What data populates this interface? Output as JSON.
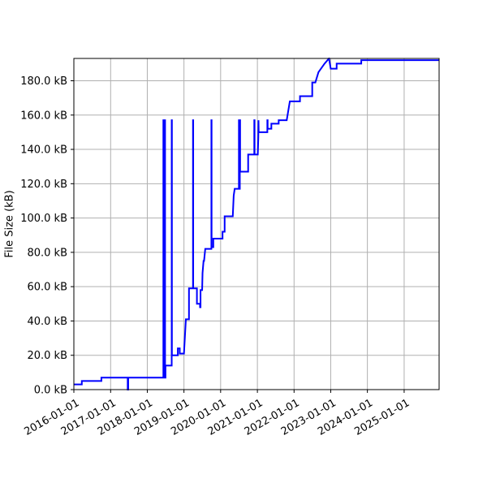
{
  "chart_data": {
    "type": "line",
    "title": "",
    "xlabel": "",
    "ylabel": "File Size (kB)",
    "grid": true,
    "x_is_date": true,
    "xlim": [
      "2016-01-01",
      "2025-12-15"
    ],
    "ylim": [
      0,
      193
    ],
    "x_ticks": [
      "2016-01-01",
      "2017-01-01",
      "2018-01-01",
      "2019-01-01",
      "2020-01-01",
      "2021-01-01",
      "2022-01-01",
      "2023-01-01",
      "2024-01-01",
      "2025-01-01"
    ],
    "x_tick_labels": [
      "2016-01-01",
      "2017-01-01",
      "2018-01-01",
      "2019-01-01",
      "2020-01-01",
      "2021-01-01",
      "2022-01-01",
      "2023-01-01",
      "2024-01-01",
      "2025-01-01"
    ],
    "y_ticks": [
      0,
      20,
      40,
      60,
      80,
      100,
      120,
      140,
      160,
      180
    ],
    "y_tick_labels": [
      "0.0 kB",
      "20.0 kB",
      "40.0 kB",
      "60.0 kB",
      "80.0 kB",
      "100.0 kB",
      "120.0 kB",
      "140.0 kB",
      "160.0 kB",
      "180.0 kB"
    ],
    "series": [
      {
        "color": "#0000ff",
        "points": [
          [
            "2016-01-01",
            3.0
          ],
          [
            "2016-03-20",
            3.0
          ],
          [
            "2016-03-20",
            5.0
          ],
          [
            "2016-10-01",
            5.0
          ],
          [
            "2016-10-01",
            7.0
          ],
          [
            "2017-06-20",
            7.0
          ],
          [
            "2017-06-20",
            0.0
          ],
          [
            "2017-06-25",
            0.0
          ],
          [
            "2017-06-25",
            7.0
          ],
          [
            "2018-06-10",
            7.0
          ],
          [
            "2018-06-10",
            157.0
          ],
          [
            "2018-06-14",
            157.0
          ],
          [
            "2018-06-14",
            7.0
          ],
          [
            "2018-06-17",
            7.0
          ],
          [
            "2018-06-17",
            157.0
          ],
          [
            "2018-06-20",
            157.0
          ],
          [
            "2018-06-20",
            7.0
          ],
          [
            "2018-06-24",
            7.0
          ],
          [
            "2018-06-24",
            157.0
          ],
          [
            "2018-06-27",
            157.0
          ],
          [
            "2018-06-27",
            7.0
          ],
          [
            "2018-07-01",
            7.0
          ],
          [
            "2018-07-01",
            14.0
          ],
          [
            "2018-09-01",
            14.0
          ],
          [
            "2018-09-01",
            157.0
          ],
          [
            "2018-09-03",
            157.0
          ],
          [
            "2018-09-03",
            20.0
          ],
          [
            "2018-11-01",
            20.0
          ],
          [
            "2018-11-01",
            24.0
          ],
          [
            "2018-11-20",
            24.0
          ],
          [
            "2018-11-20",
            21.0
          ],
          [
            "2019-01-01",
            21.0
          ],
          [
            "2019-01-20",
            41.0
          ],
          [
            "2019-02-20",
            41.0
          ],
          [
            "2019-02-20",
            59.0
          ],
          [
            "2019-04-01",
            59.0
          ],
          [
            "2019-04-01",
            157.0
          ],
          [
            "2019-04-03",
            157.0
          ],
          [
            "2019-04-03",
            59.0
          ],
          [
            "2019-05-10",
            59.0
          ],
          [
            "2019-05-10",
            50.0
          ],
          [
            "2019-06-10",
            50.0
          ],
          [
            "2019-06-10",
            48.0
          ],
          [
            "2019-06-15",
            48.0
          ],
          [
            "2019-06-15",
            58.0
          ],
          [
            "2019-07-01",
            58.0
          ],
          [
            "2019-07-05",
            68.0
          ],
          [
            "2019-07-15",
            75.0
          ],
          [
            "2019-07-20",
            75.0
          ],
          [
            "2019-08-01",
            82.0
          ],
          [
            "2019-10-01",
            82.0
          ],
          [
            "2019-10-01",
            157.0
          ],
          [
            "2019-10-03",
            157.0
          ],
          [
            "2019-10-03",
            83.0
          ],
          [
            "2019-10-20",
            83.0
          ],
          [
            "2019-10-20",
            88.0
          ],
          [
            "2020-01-20",
            88.0
          ],
          [
            "2020-01-20",
            92.0
          ],
          [
            "2020-02-10",
            92.0
          ],
          [
            "2020-02-10",
            101.0
          ],
          [
            "2020-05-01",
            101.0
          ],
          [
            "2020-05-10",
            113.0
          ],
          [
            "2020-05-20",
            117.0
          ],
          [
            "2020-07-01",
            117.0
          ],
          [
            "2020-07-01",
            157.0
          ],
          [
            "2020-07-03",
            157.0
          ],
          [
            "2020-07-03",
            117.0
          ],
          [
            "2020-07-10",
            117.0
          ],
          [
            "2020-07-10",
            157.0
          ],
          [
            "2020-07-13",
            157.0
          ],
          [
            "2020-07-13",
            127.0
          ],
          [
            "2020-10-01",
            127.0
          ],
          [
            "2020-10-01",
            137.0
          ],
          [
            "2020-12-01",
            137.0
          ],
          [
            "2020-12-01",
            157.0
          ],
          [
            "2020-12-04",
            157.0
          ],
          [
            "2020-12-04",
            137.0
          ],
          [
            "2021-01-05",
            137.0
          ],
          [
            "2021-01-10",
            147.0
          ],
          [
            "2021-01-12",
            157.0
          ],
          [
            "2021-01-14",
            150.0
          ],
          [
            "2021-04-10",
            150.0
          ],
          [
            "2021-04-10",
            157.0
          ],
          [
            "2021-04-13",
            157.0
          ],
          [
            "2021-04-13",
            152.0
          ],
          [
            "2021-05-20",
            152.0
          ],
          [
            "2021-05-20",
            155.0
          ],
          [
            "2021-08-01",
            155.0
          ],
          [
            "2021-08-01",
            157.0
          ],
          [
            "2021-10-20",
            157.0
          ],
          [
            "2021-11-20",
            168.0
          ],
          [
            "2022-03-01",
            168.0
          ],
          [
            "2022-03-01",
            171.0
          ],
          [
            "2022-07-01",
            171.0
          ],
          [
            "2022-07-01",
            179.0
          ],
          [
            "2022-08-01",
            179.0
          ],
          [
            "2022-09-01",
            185.0
          ],
          [
            "2022-11-01",
            190.0
          ],
          [
            "2022-12-15",
            193.0
          ],
          [
            "2023-01-01",
            187.0
          ],
          [
            "2023-03-01",
            187.0
          ],
          [
            "2023-03-01",
            190.0
          ],
          [
            "2023-11-01",
            190.0
          ],
          [
            "2023-11-01",
            192.0
          ],
          [
            "2025-12-15",
            192.0
          ]
        ]
      }
    ]
  }
}
